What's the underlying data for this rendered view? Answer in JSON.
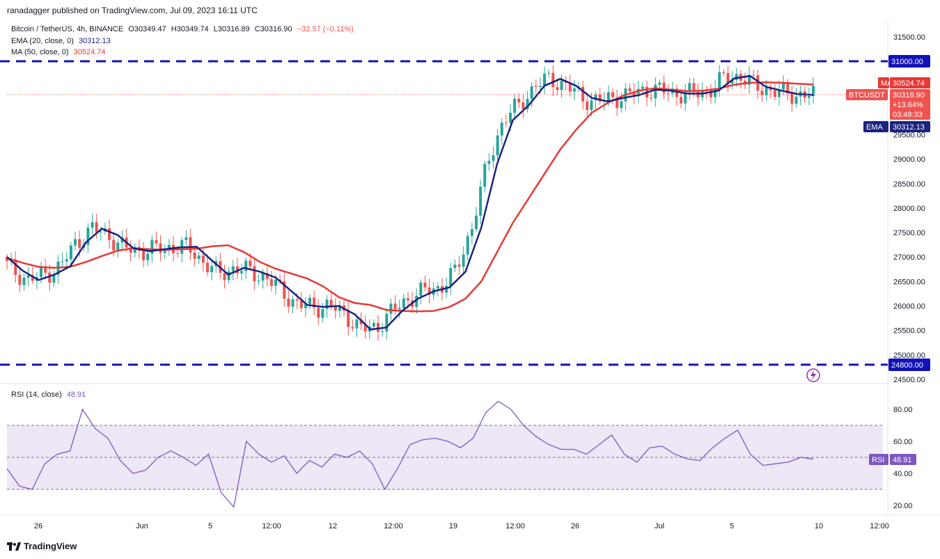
{
  "publisher_line": "ranadagger published on TradingView.com, Jul 09, 2023 16:11 UTC",
  "header": {
    "symbol": "Bitcoin / TetherUS, 4h, BINANCE",
    "open": "O30349.47",
    "high": "H30349.74",
    "low": "L30316.89",
    "close": "C30316.90",
    "change": "−32.57 (−0.11%)",
    "ema_label": "EMA (20, close, 0)",
    "ema_value": "30312.13",
    "ma_label": "MA (50, close, 0)",
    "ma_value": "30524.74",
    "rsi_label": "RSI (14, close)",
    "rsi_value": "48.91"
  },
  "footer_brand": "TradingView",
  "colors": {
    "up": "#26a69a",
    "down": "#ef5350",
    "ema": "#1a237e",
    "ma": "#e53935",
    "level_line": "#1212b8",
    "rsi": "#7e57c2",
    "rsi_band": "#ede7f6"
  },
  "price_tags": {
    "ma": {
      "label": "MA",
      "value": "30524.74"
    },
    "last": {
      "label": "BTCUSDT",
      "value": "30316.90",
      "change": "+13.64%",
      "countdown": "03:48:33"
    },
    "ema": {
      "label": "EMA",
      "value": "30312.13"
    },
    "resistance": "31000.00",
    "support": "24800.00",
    "rsi": {
      "label": "RSI",
      "value": "48.91"
    }
  },
  "chart_data": [
    {
      "type": "line",
      "title": "Bitcoin / TetherUS, 4h, BINANCE",
      "y_ticks": [
        "24500.00",
        "25000.00",
        "25500.00",
        "26000.00",
        "26500.00",
        "27000.00",
        "27500.00",
        "28000.00",
        "28500.00",
        "29000.00",
        "29500.00",
        "30000.00",
        "30500.00",
        "31000.00",
        "31500.00"
      ],
      "x_ticks": [
        "26",
        "Jun",
        "5",
        "12:00",
        "12",
        "12:00",
        "19",
        "12:00",
        "26",
        "Jul",
        "5",
        "10",
        "12:00"
      ],
      "ylim": [
        24450,
        31550
      ],
      "horizontal_levels": [
        31000,
        24800
      ],
      "series": [
        {
          "name": "EMA (20, close, 0)",
          "values": [
            27000,
            26720,
            26530,
            26640,
            26810,
            27300,
            27580,
            27450,
            27180,
            27120,
            27160,
            27200,
            27210,
            26920,
            26640,
            26780,
            26700,
            26580,
            26300,
            26020,
            25980,
            26000,
            25830,
            25520,
            25560,
            25900,
            26150,
            26300,
            26380,
            26700,
            27600,
            28900,
            29800,
            30100,
            30500,
            30640,
            30500,
            30250,
            30180,
            30250,
            30310,
            30420,
            30400,
            30340,
            30340,
            30400,
            30650,
            30700,
            30480,
            30400,
            30330,
            30312
          ]
        },
        {
          "name": "MA (50, close, 0)",
          "values": [
            26980,
            26880,
            26800,
            26780,
            26800,
            26900,
            27020,
            27130,
            27180,
            27160,
            27150,
            27160,
            27170,
            27220,
            27240,
            27100,
            26900,
            26760,
            26660,
            26560,
            26400,
            26180,
            26060,
            26020,
            25920,
            25900,
            25890,
            25900,
            25980,
            26150,
            26500,
            27100,
            27700,
            28200,
            28700,
            29200,
            29600,
            29950,
            30150,
            30300,
            30400,
            30450,
            30420,
            30390,
            30400,
            30440,
            30520,
            30560,
            30570,
            30560,
            30540,
            30525
          ]
        }
      ]
    },
    {
      "type": "line",
      "title": "RSI (14, close)",
      "y_ticks": [
        "20.00",
        "40.00",
        "60.00",
        "80.00"
      ],
      "ylim": [
        12,
        88
      ],
      "bands": [
        30,
        70
      ],
      "series": [
        {
          "name": "RSI",
          "values": [
            43,
            32,
            30,
            46,
            52,
            54,
            80,
            68,
            62,
            48,
            40,
            42,
            50,
            54,
            50,
            45,
            52,
            28,
            19,
            60,
            52,
            47,
            51,
            40,
            48,
            44,
            52,
            50,
            54,
            46,
            30,
            43,
            58,
            61,
            62,
            60,
            56,
            62,
            78,
            85,
            80,
            70,
            63,
            58,
            55,
            55,
            52,
            58,
            64,
            52,
            47,
            56,
            57,
            52,
            49,
            48,
            56,
            62,
            67,
            52,
            45,
            46,
            47,
            50,
            49
          ]
        }
      ]
    }
  ]
}
